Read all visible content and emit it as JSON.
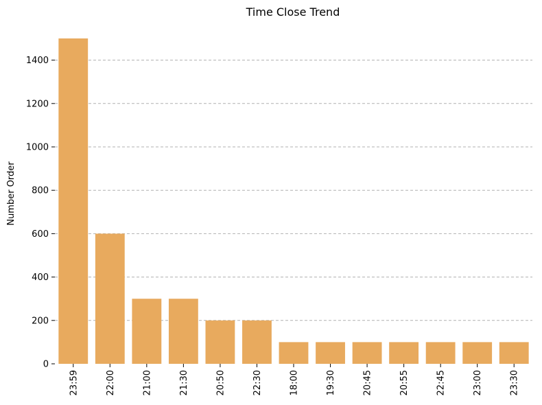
{
  "chart_data": {
    "type": "bar",
    "title": "Time Close Trend",
    "xlabel": "",
    "ylabel": "Number Order",
    "categories": [
      "23:59",
      "22:00",
      "21:00",
      "21:30",
      "20:50",
      "22:30",
      "18:00",
      "19:30",
      "20:45",
      "20:55",
      "22:45",
      "23:00",
      "23:30"
    ],
    "values": [
      1500,
      600,
      300,
      300,
      200,
      200,
      100,
      100,
      100,
      100,
      100,
      100,
      100
    ],
    "ylim": [
      0,
      1500
    ],
    "yticks": [
      0,
      200,
      400,
      600,
      800,
      1000,
      1200,
      1400
    ],
    "grid": true,
    "bar_color": "#e8aa5e"
  }
}
